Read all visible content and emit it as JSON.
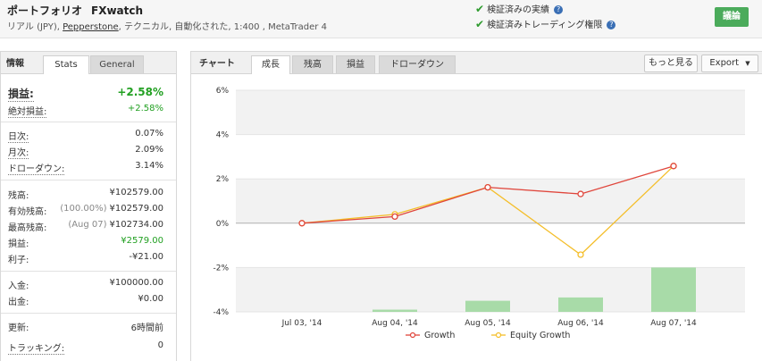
{
  "header": {
    "title": "ポートフォリオ",
    "system_name": "FXwatch",
    "subtitle_prefix": "リアル (JPY), ",
    "broker": "Pepperstone",
    "subtitle_suffix": ", テクニカル, 自動化された, 1:400 , MetaTrader 4",
    "verified_track_record": "検証済みの実績",
    "verified_trading_privileges": "検証済みトレーディング権限",
    "help_glyph": "?",
    "discuss_button": "議論"
  },
  "left_tabs": {
    "info": "情報",
    "stats": "Stats",
    "general": "General"
  },
  "stats": {
    "gain_label": "損益:",
    "gain_value": "+2.58%",
    "abs_gain_label": "絶対損益:",
    "abs_gain_value": "+2.58%",
    "daily_label": "日次:",
    "daily_value": "0.07%",
    "monthly_label": "月次:",
    "monthly_value": "2.09%",
    "drawdown_label": "ドローダウン:",
    "drawdown_value": "3.14%",
    "balance_label": "残高:",
    "balance_value": "¥102579.00",
    "equity_label": "有効残高:",
    "equity_pct": "(100.00%)",
    "equity_value": "¥102579.00",
    "highest_label": "最高残高:",
    "highest_date": "(Aug 07)",
    "highest_value": "¥102734.00",
    "profit_label": "損益:",
    "profit_value": "¥2579.00",
    "interest_label": "利子:",
    "interest_value": "-¥21.00",
    "deposits_label": "入金:",
    "deposits_value": "¥100000.00",
    "withdrawals_label": "出金:",
    "withdrawals_value": "¥0.00",
    "updated_label": "更新:",
    "updated_value": "6時間前",
    "tracking_label": "トラッキング:",
    "tracking_value": "0"
  },
  "right_tabs": {
    "chart": "チャート",
    "growth": "成長",
    "balance": "残高",
    "profit": "損益",
    "drawdown": "ドローダウン",
    "more_button": "もっと見る",
    "export_button": "Export",
    "export_caret": "▼"
  },
  "colors": {
    "growth": "#e0463c",
    "equity": "#f4be2a",
    "bars": "#a8dba8",
    "accent": "#4bab5b"
  },
  "chart_data": {
    "type": "line",
    "categories": [
      "Jul 03, '14",
      "Aug 04, '14",
      "Aug 05, '14",
      "Aug 06, '14",
      "Aug 07, '14"
    ],
    "series": [
      {
        "name": "Growth",
        "values": [
          0,
          0.3,
          1.62,
          1.32,
          2.58
        ]
      },
      {
        "name": "Equity Growth",
        "values": [
          0,
          0.4,
          1.62,
          -1.42,
          2.58
        ]
      }
    ],
    "bars": {
      "values": [
        null,
        -3.9,
        -3.5,
        -3.35,
        -2.0
      ]
    },
    "y_ticks": [
      "6%",
      "4%",
      "2%",
      "0%",
      "-2%",
      "-4%"
    ],
    "ylim": [
      -4,
      6
    ],
    "grid": true,
    "legend": "bottom"
  }
}
